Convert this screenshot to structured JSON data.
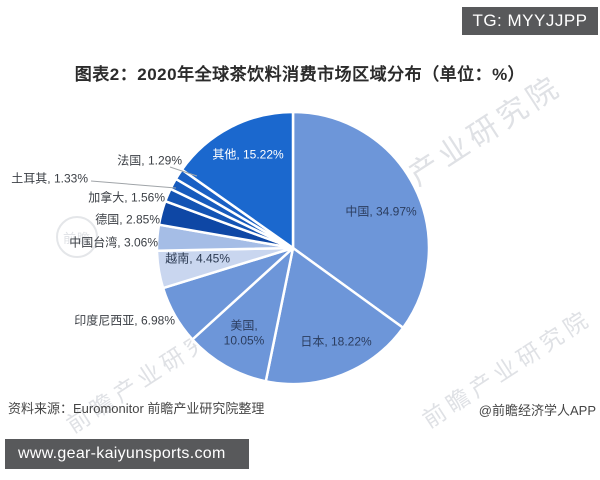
{
  "badge": {
    "text": "TG: MYYJJPP"
  },
  "title": "图表2：2020年全球茶饮料消费市场区域分布（单位：%）",
  "watermark": {
    "text": "前瞻产业研究院",
    "logo": "前瞻"
  },
  "footer": {
    "source": "资料来源：Euromonitor 前瞻产业研究院整理",
    "credit": "@前瞻经济学人APP",
    "site": "www.gear-kaiyunsports.com"
  },
  "chart_data": {
    "type": "pie",
    "title": "2020年全球茶饮料消费市场区域分布",
    "unit": "%",
    "start_angle": "top",
    "direction": "clockwise",
    "separator_color": "#ffffff",
    "slices": [
      {
        "key": "china",
        "label": "中国",
        "value": 34.97,
        "color": "#6d96d9"
      },
      {
        "key": "japan",
        "label": "日本",
        "value": 18.22,
        "color": "#6d96d9"
      },
      {
        "key": "usa",
        "label": "美国",
        "value": 10.05,
        "color": "#6d96d9"
      },
      {
        "key": "indonesia",
        "label": "印度尼西亚",
        "value": 6.98,
        "color": "#6d96d9"
      },
      {
        "key": "vietnam",
        "label": "越南",
        "value": 4.45,
        "color": "#c9d6ef"
      },
      {
        "key": "taiwan",
        "label": "中国台湾",
        "value": 3.06,
        "color": "#a5bde6"
      },
      {
        "key": "germany",
        "label": "德国",
        "value": 2.85,
        "color": "#0e47a5"
      },
      {
        "key": "canada",
        "label": "加拿大",
        "value": 1.56,
        "color": "#1454b4"
      },
      {
        "key": "turkey",
        "label": "土耳其",
        "value": 1.33,
        "color": "#175bbd"
      },
      {
        "key": "france",
        "label": "法国",
        "value": 1.29,
        "color": "#1a60c4"
      },
      {
        "key": "others",
        "label": "其他",
        "value": 15.22,
        "color": "#1b68ce"
      }
    ]
  }
}
